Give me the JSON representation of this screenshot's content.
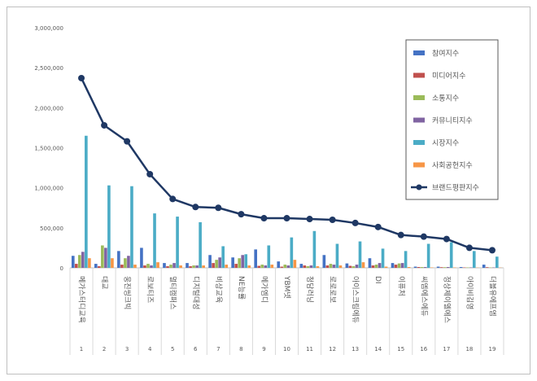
{
  "chart_data": {
    "type": "bar",
    "title": "",
    "xlabel": "",
    "ylabel": "",
    "ylim": [
      0,
      3000000
    ],
    "yticks": [
      0,
      500000,
      1000000,
      1500000,
      2000000,
      2500000,
      3000000
    ],
    "ytick_labels": [
      "0",
      "500,000",
      "1,000,000",
      "1,500,000",
      "2,000,000",
      "2,500,000",
      "3,000,000"
    ],
    "categories": [
      "메가스터디교육",
      "대교",
      "웅진씽크빅",
      "로보티즈",
      "멀티캠퍼스",
      "디지털대성",
      "비상교육",
      "NE능률",
      "메가엠디",
      "YBM넷",
      "청담러닝",
      "로로로보",
      "아이스크림에듀",
      "DI",
      "이퓨처",
      "씨엠에스에듀",
      "정상제이엘에스",
      "아이비김영",
      "더블유에프엠"
    ],
    "ranks": [
      "1",
      "2",
      "3",
      "4",
      "5",
      "6",
      "7",
      "8",
      "9",
      "10",
      "11",
      "12",
      "13",
      "14",
      "15",
      "16",
      "17",
      "18",
      "19"
    ],
    "series": [
      {
        "name": "참여지수",
        "kind": "bar",
        "color": "#4472c4",
        "values": [
          150000,
          50000,
          210000,
          250000,
          60000,
          60000,
          160000,
          130000,
          230000,
          80000,
          50000,
          160000,
          55000,
          120000,
          60000,
          15000,
          15000,
          10000,
          40000
        ]
      },
      {
        "name": "미디어지수",
        "kind": "bar",
        "color": "#c0504d",
        "values": [
          50000,
          20000,
          40000,
          30000,
          20000,
          20000,
          60000,
          50000,
          25000,
          15000,
          30000,
          30000,
          25000,
          30000,
          40000,
          10000,
          8000,
          5000,
          8000
        ]
      },
      {
        "name": "소통지수",
        "kind": "bar",
        "color": "#9bbb59",
        "values": [
          160000,
          280000,
          120000,
          50000,
          40000,
          30000,
          100000,
          120000,
          40000,
          40000,
          20000,
          50000,
          20000,
          40000,
          55000,
          10000,
          8000,
          5000,
          5000
        ]
      },
      {
        "name": "커뮤니티지수",
        "kind": "bar",
        "color": "#8064a2",
        "values": [
          200000,
          250000,
          150000,
          30000,
          60000,
          30000,
          130000,
          160000,
          30000,
          30000,
          30000,
          40000,
          40000,
          60000,
          60000,
          10000,
          10000,
          5000,
          5000
        ]
      },
      {
        "name": "시장지수",
        "kind": "bar",
        "color": "#4bacc6",
        "values": [
          1650000,
          1030000,
          1020000,
          680000,
          640000,
          570000,
          270000,
          170000,
          280000,
          380000,
          460000,
          300000,
          330000,
          240000,
          210000,
          300000,
          320000,
          210000,
          140000
        ]
      },
      {
        "name": "사회공헌지수",
        "kind": "bar",
        "color": "#f79646",
        "values": [
          120000,
          120000,
          40000,
          70000,
          30000,
          30000,
          40000,
          30000,
          40000,
          100000,
          20000,
          30000,
          70000,
          15000,
          10000,
          5000,
          5000,
          3000,
          3000
        ]
      },
      {
        "name": "브랜드평판지수",
        "kind": "line",
        "color": "#1f3864",
        "values": [
          2370000,
          1780000,
          1580000,
          1170000,
          860000,
          760000,
          750000,
          670000,
          620000,
          620000,
          610000,
          600000,
          560000,
          510000,
          410000,
          390000,
          360000,
          250000,
          220000
        ]
      }
    ],
    "legend_position": "top-right",
    "grid": false
  }
}
